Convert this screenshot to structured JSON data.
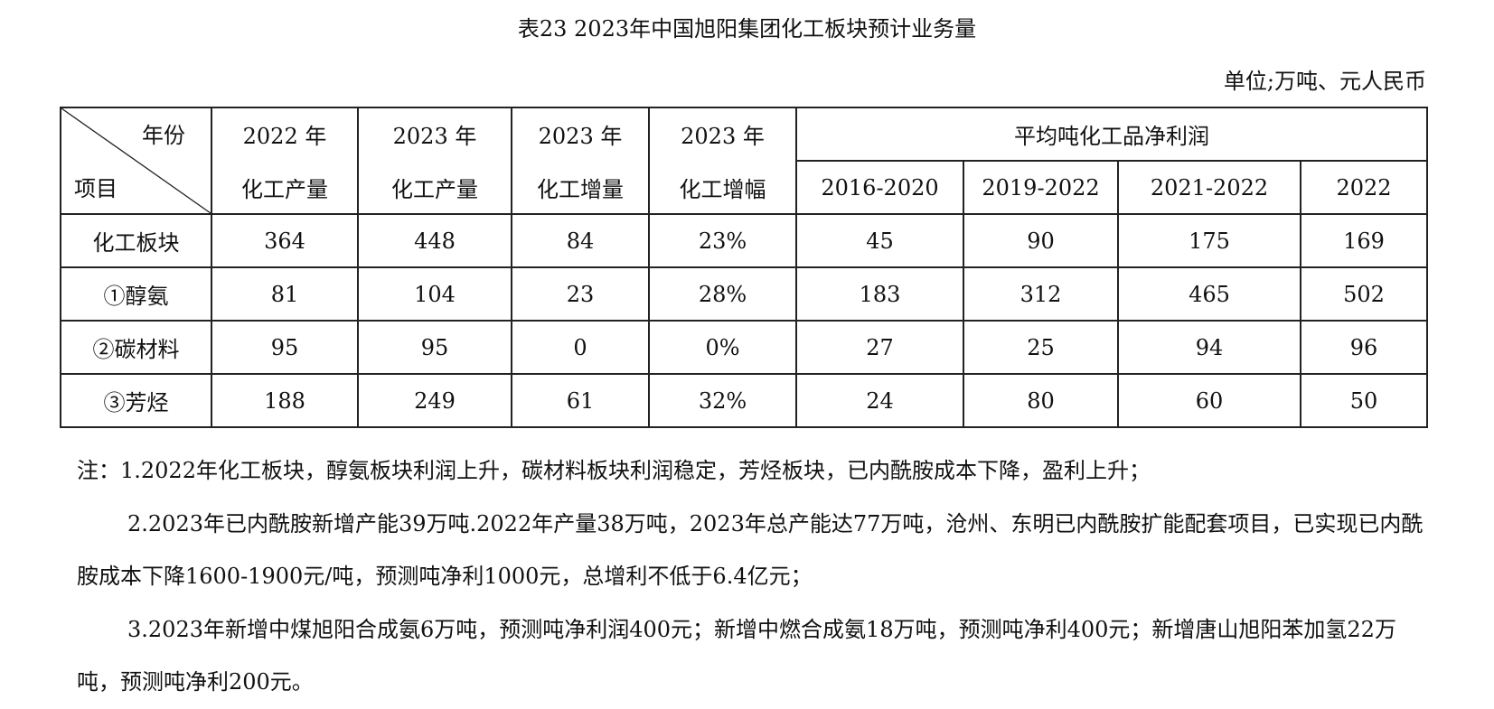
{
  "title": "表23 2023年中国旭阳集团化工板块预计业务量",
  "unit": "单位;万吨、元人民币",
  "table": {
    "corner_top": "年份",
    "corner_bottom": "项目",
    "headers": [
      [
        "2022 年",
        "化工产量"
      ],
      [
        "2023 年",
        "化工产量"
      ],
      [
        "2023 年",
        "化工增量"
      ],
      [
        "2023 年",
        "化工增幅"
      ]
    ],
    "group_header": "平均吨化工品净利润",
    "sub_headers": [
      "2016-2020",
      "2019-2022",
      "2021-2022",
      "2022"
    ],
    "rows": [
      [
        "化工板块",
        "364",
        "448",
        "84",
        "23%",
        "45",
        "90",
        "175",
        "169"
      ],
      [
        "①醇氨",
        "81",
        "104",
        "23",
        "28%",
        "183",
        "312",
        "465",
        "502"
      ],
      [
        "②碳材料",
        "95",
        "95",
        "0",
        "0%",
        "27",
        "25",
        "94",
        "96"
      ],
      [
        "③芳烃",
        "188",
        "249",
        "61",
        "32%",
        "24",
        "80",
        "60",
        "50"
      ]
    ]
  },
  "notes": [
    "注：1.2022年化工板块，醇氨板块利润上升，碳材料板块利润稳定，芳烃板块，已内酰胺成本下降，盈利上升；",
    "2.2023年已内酰胺新增产能39万吨.2022年产量38万吨，2023年总产能达77万吨，沧州、东明已内酰胺扩能配套项目，已实现已内酰胺成本下降1600-1900元/吨，预测吨净利1000元，总增利不低于6.4亿元；",
    "3.2023年新增中煤旭阳合成氨6万吨，预测吨净利润400元；新增中燃合成氨18万吨，预测吨净利400元；新增唐山旭阳苯加氢22万吨，预测吨净利200元。"
  ]
}
